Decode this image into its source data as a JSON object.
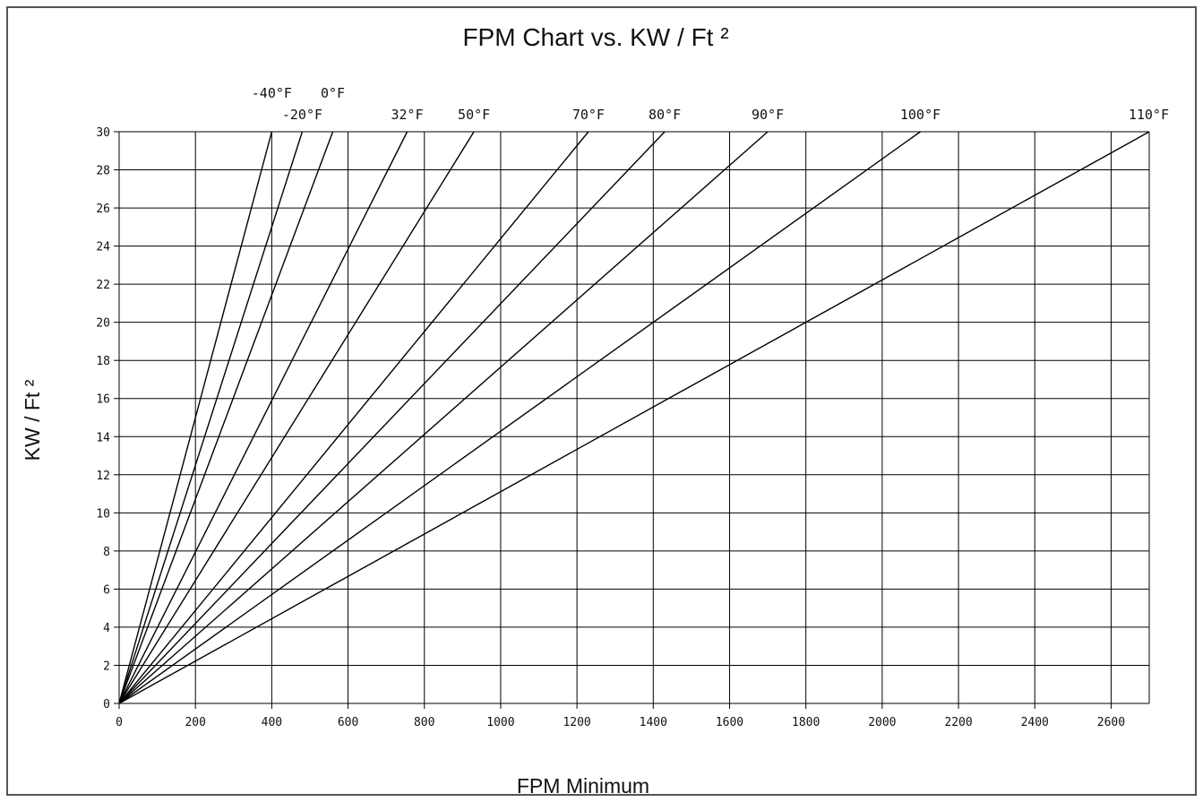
{
  "chart_data": {
    "type": "line",
    "title": "FPM Chart vs. KW / Ft ²",
    "xlabel": "FPM Minimum",
    "ylabel": "KW / Ft ²",
    "xlim": [
      0,
      2700
    ],
    "ylim": [
      0,
      30
    ],
    "xticks": [
      0,
      200,
      400,
      600,
      800,
      1000,
      1200,
      1400,
      1600,
      1800,
      2000,
      2200,
      2400,
      2600
    ],
    "yticks": [
      0,
      2,
      4,
      6,
      8,
      10,
      12,
      14,
      16,
      18,
      20,
      22,
      24,
      26,
      28,
      30
    ],
    "grid": true,
    "series": [
      {
        "name": "-40°F",
        "points": [
          [
            0,
            0
          ],
          [
            400,
            30
          ]
        ]
      },
      {
        "name": "-20°F",
        "points": [
          [
            0,
            0
          ],
          [
            480,
            30
          ]
        ]
      },
      {
        "name": "0°F",
        "points": [
          [
            0,
            0
          ],
          [
            560,
            30
          ]
        ]
      },
      {
        "name": "32°F",
        "points": [
          [
            0,
            0
          ],
          [
            755,
            30
          ]
        ]
      },
      {
        "name": "50°F",
        "points": [
          [
            0,
            0
          ],
          [
            930,
            30
          ]
        ]
      },
      {
        "name": "70°F",
        "points": [
          [
            0,
            0
          ],
          [
            1230,
            30
          ]
        ]
      },
      {
        "name": "80°F",
        "points": [
          [
            0,
            0
          ],
          [
            1430,
            30
          ]
        ]
      },
      {
        "name": "90°F",
        "points": [
          [
            0,
            0
          ],
          [
            1700,
            30
          ]
        ]
      },
      {
        "name": "100°F",
        "points": [
          [
            0,
            0
          ],
          [
            2100,
            30
          ]
        ]
      },
      {
        "name": "110°F",
        "points": [
          [
            0,
            0
          ],
          [
            2700,
            30
          ]
        ]
      }
    ]
  }
}
